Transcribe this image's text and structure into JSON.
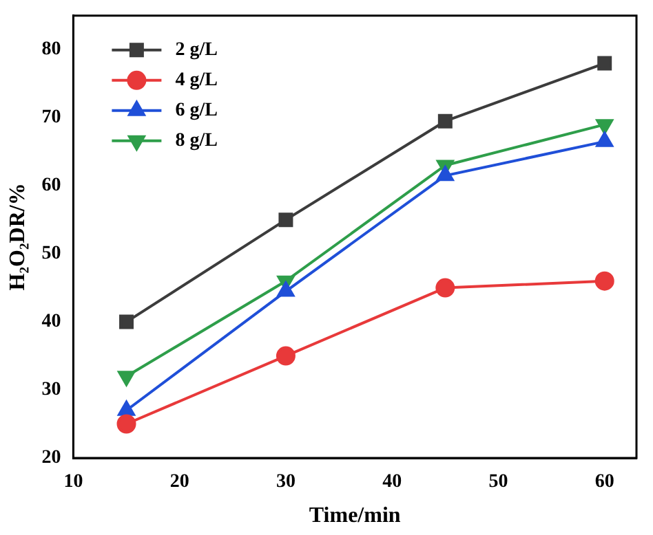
{
  "chart_data": {
    "type": "line",
    "xlabel": "Time/min",
    "ylabel": "H₂O₂DR/%",
    "x": [
      15,
      30,
      45,
      60
    ],
    "series": [
      {
        "name": "2 g/L",
        "color": "#3c3c3c",
        "marker": "square",
        "values": [
          40,
          55,
          69.5,
          78
        ]
      },
      {
        "name": "4 g/L",
        "color": "#e8393a",
        "marker": "circle",
        "values": [
          25,
          35,
          45,
          46
        ]
      },
      {
        "name": "6 g/L",
        "color": "#1f4fd8",
        "marker": "triangle",
        "values": [
          27,
          44.5,
          61.5,
          66.5
        ]
      },
      {
        "name": "8 g/L",
        "color": "#2e9e4a",
        "marker": "triangle-down",
        "values": [
          32,
          46,
          63,
          69
        ]
      }
    ],
    "xlim": [
      10,
      63
    ],
    "xticks": [
      10,
      20,
      30,
      40,
      50,
      60
    ],
    "ylim": [
      20,
      85
    ],
    "yticks": [
      20,
      30,
      40,
      50,
      60,
      70,
      80
    ],
    "grid": false,
    "legend": "top left",
    "line_style": "solid"
  }
}
